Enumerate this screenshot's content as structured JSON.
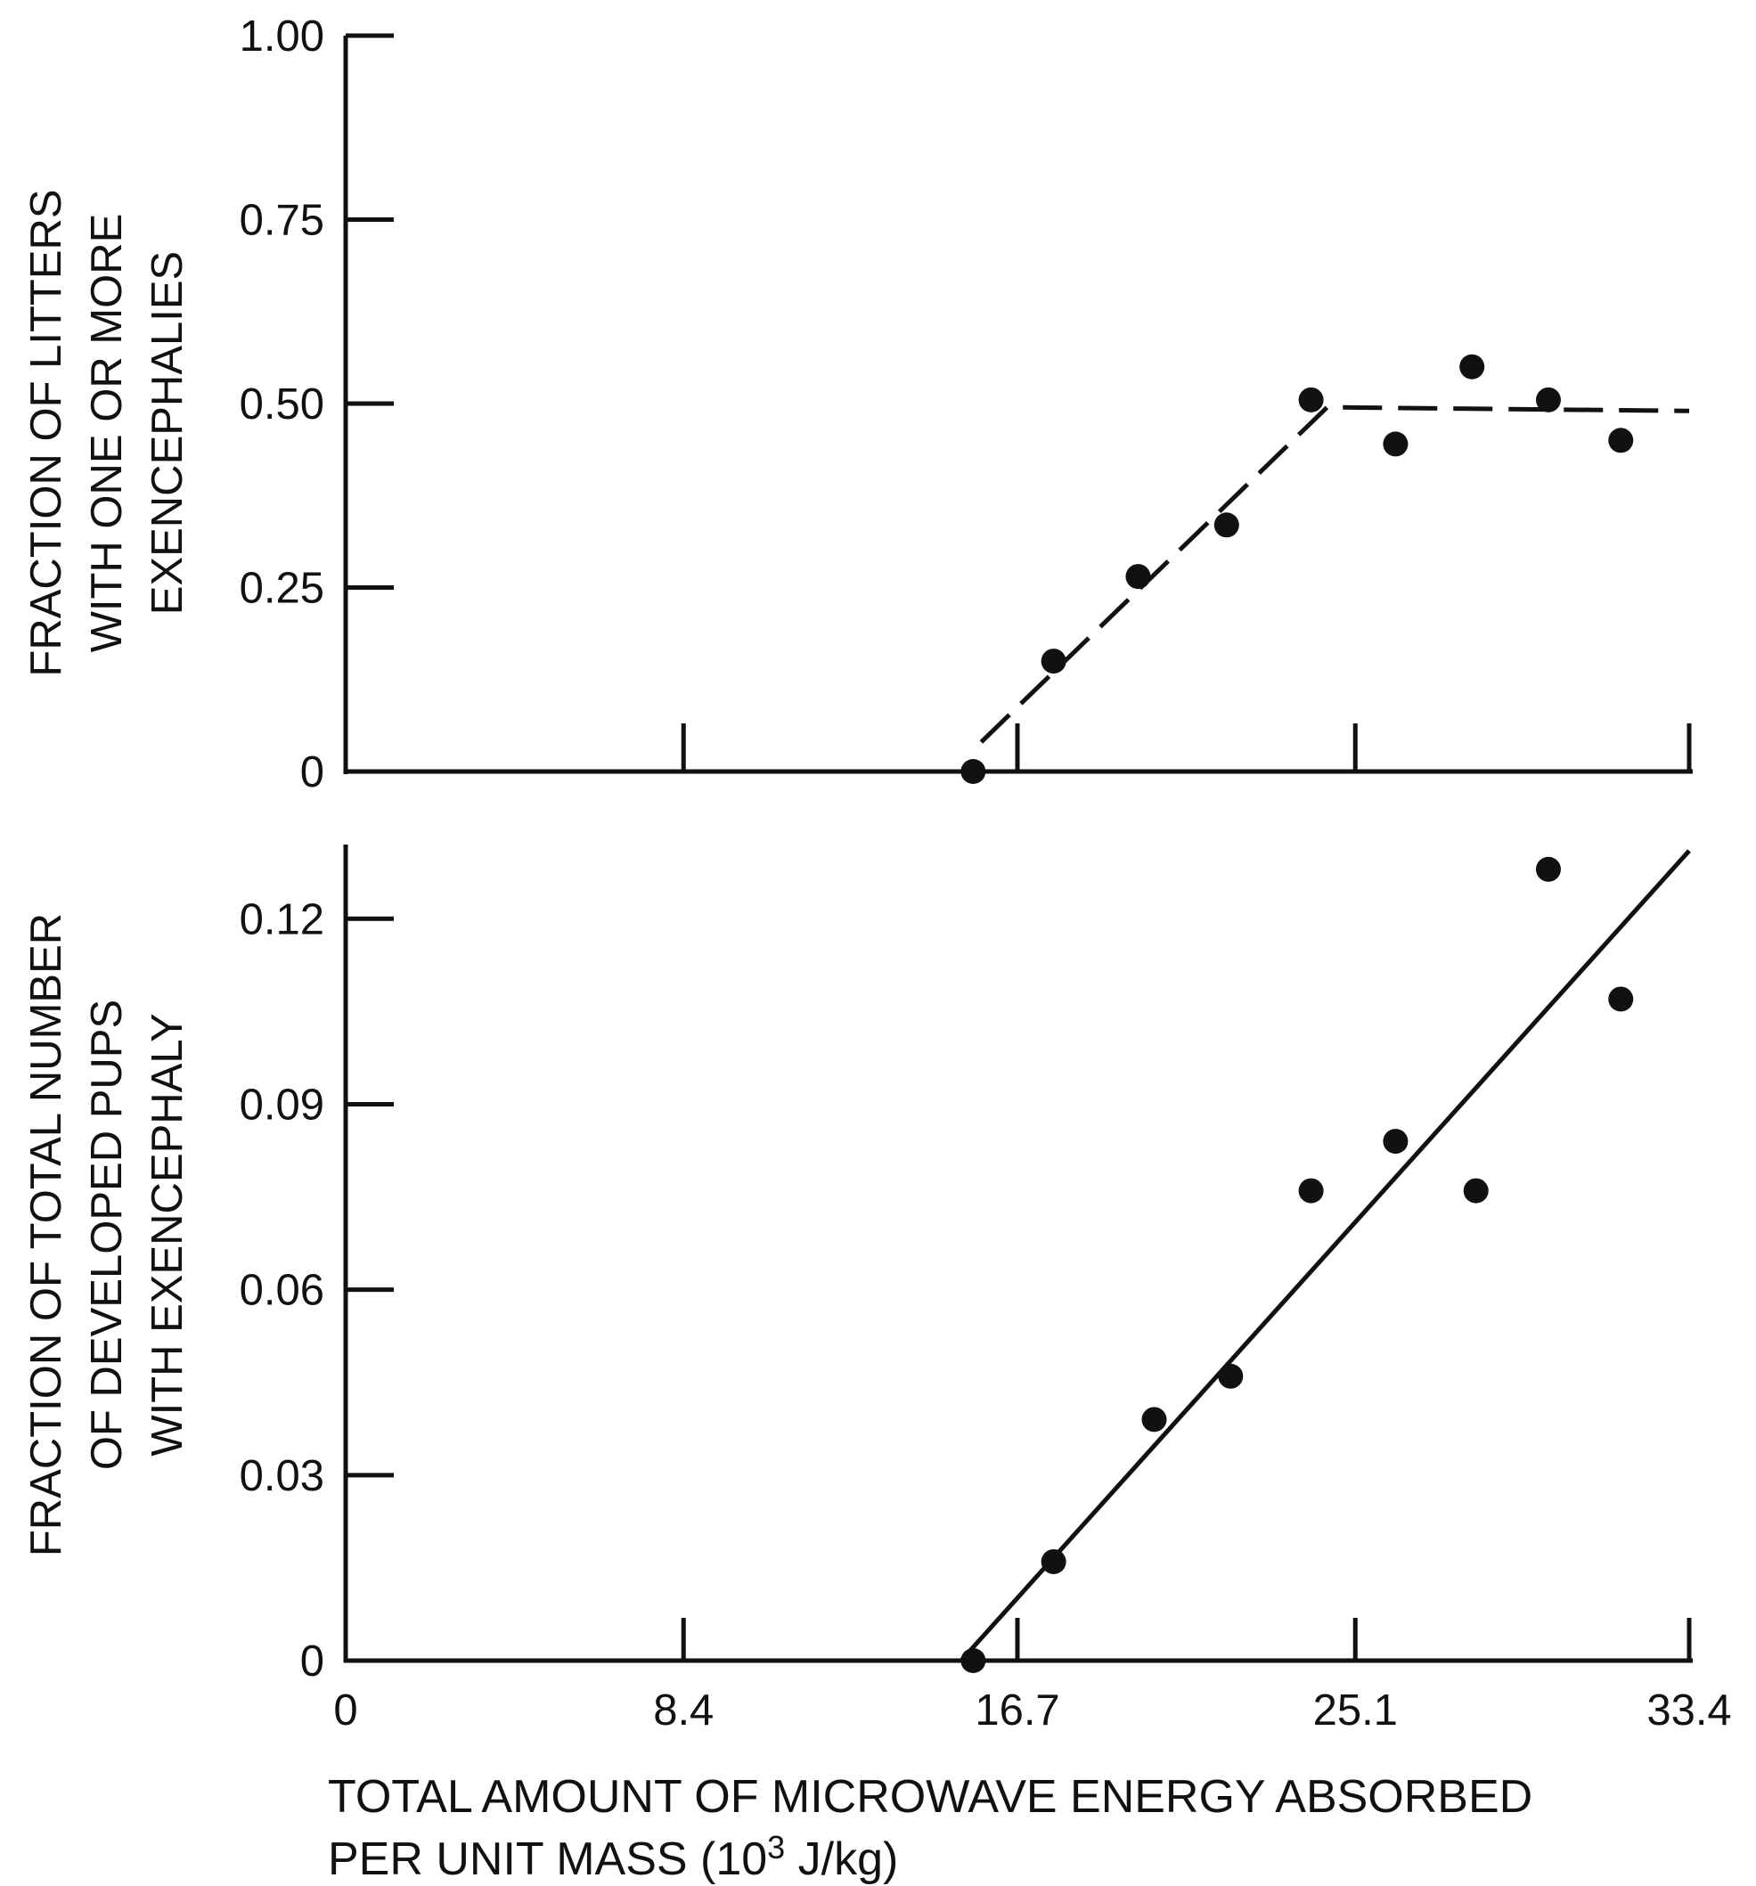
{
  "chart_data": [
    {
      "type": "scatter",
      "ylabel_lines": [
        "FRACTION OF LITTERS",
        "WITH ONE OR MORE",
        "EXENCEPHALIES"
      ],
      "ylim": [
        0,
        1.0
      ],
      "xlim": [
        0,
        33.4
      ],
      "y_ticks": [
        {
          "value": 0,
          "label": "0"
        },
        {
          "value": 0.25,
          "label": "0.25"
        },
        {
          "value": 0.5,
          "label": "0.50"
        },
        {
          "value": 0.75,
          "label": "0.75"
        },
        {
          "value": 1.0,
          "label": "1.00"
        }
      ],
      "x_ticks": [
        8.4,
        16.7,
        25.1,
        33.4
      ],
      "points": [
        {
          "x": 15.6,
          "y": 0.0
        },
        {
          "x": 17.6,
          "y": 0.15
        },
        {
          "x": 19.7,
          "y": 0.265
        },
        {
          "x": 21.9,
          "y": 0.335
        },
        {
          "x": 24.0,
          "y": 0.505
        },
        {
          "x": 26.1,
          "y": 0.445
        },
        {
          "x": 28.0,
          "y": 0.55
        },
        {
          "x": 29.9,
          "y": 0.505
        },
        {
          "x": 31.7,
          "y": 0.45
        }
      ],
      "fit": {
        "style": "dashed",
        "points": [
          {
            "x": 15.8,
            "y": 0.04
          },
          {
            "x": 24.4,
            "y": 0.495
          },
          {
            "x": 33.4,
            "y": 0.49
          }
        ]
      }
    },
    {
      "type": "scatter",
      "ylabel_lines": [
        "FRACTION OF TOTAL NUMBER",
        "OF DEVELOPED PUPS",
        "WITH EXENCEPHALY"
      ],
      "ylim": [
        0,
        0.132
      ],
      "xlim": [
        0,
        33.4
      ],
      "y_ticks": [
        {
          "value": 0,
          "label": "0"
        },
        {
          "value": 0.03,
          "label": "0.03"
        },
        {
          "value": 0.06,
          "label": "0.06"
        },
        {
          "value": 0.09,
          "label": "0.09"
        },
        {
          "value": 0.12,
          "label": "0.12"
        }
      ],
      "x_ticks": [
        {
          "value": 0,
          "label": "0"
        },
        {
          "value": 8.4,
          "label": "8.4"
        },
        {
          "value": 16.7,
          "label": "16.7"
        },
        {
          "value": 25.1,
          "label": "25.1"
        },
        {
          "value": 33.4,
          "label": "33.4"
        }
      ],
      "xlabel_lines": [
        "TOTAL AMOUNT OF MICROWAVE ENERGY ABSORBED",
        "PER UNIT MASS (10",
        "3",
        " J/kg)"
      ],
      "points": [
        {
          "x": 15.6,
          "y": 0.0
        },
        {
          "x": 17.6,
          "y": 0.016
        },
        {
          "x": 20.1,
          "y": 0.039
        },
        {
          "x": 22.0,
          "y": 0.046
        },
        {
          "x": 24.0,
          "y": 0.076
        },
        {
          "x": 26.1,
          "y": 0.084
        },
        {
          "x": 28.1,
          "y": 0.076
        },
        {
          "x": 29.9,
          "y": 0.128
        },
        {
          "x": 31.7,
          "y": 0.107
        }
      ],
      "fit": {
        "style": "solid",
        "points": [
          {
            "x": 15.3,
            "y": 0.0
          },
          {
            "x": 33.4,
            "y": 0.131
          }
        ]
      }
    }
  ]
}
